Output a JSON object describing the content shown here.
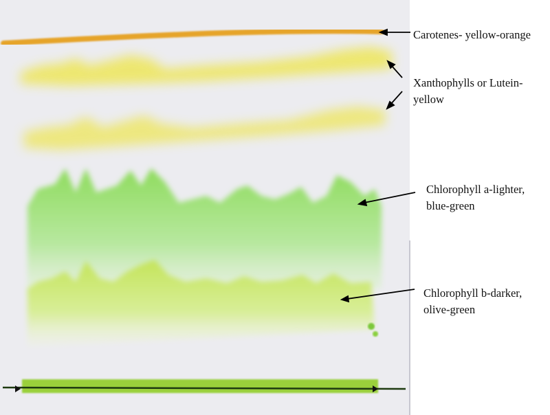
{
  "labels": {
    "carotenes": "Carotenes- yellow-orange",
    "xanthophylls_line1": "Xanthophylls or Lutein-",
    "xanthophylls_line2": "yellow",
    "chlorophyll_a_line1": "Chlorophyll a-lighter,",
    "chlorophyll_a_line2": "blue-green",
    "chlorophyll_b_line1": "Chlorophyll b-darker,",
    "chlorophyll_b_line2": "olive-green"
  },
  "colors": {
    "paper": "#ececf0",
    "carotenes": "#e6a42a",
    "xanthophylls": "#eee65a",
    "chlorophyll_a": "#98de6a",
    "chlorophyll_b": "#c6e466",
    "origin_line": "#1e3a10"
  }
}
